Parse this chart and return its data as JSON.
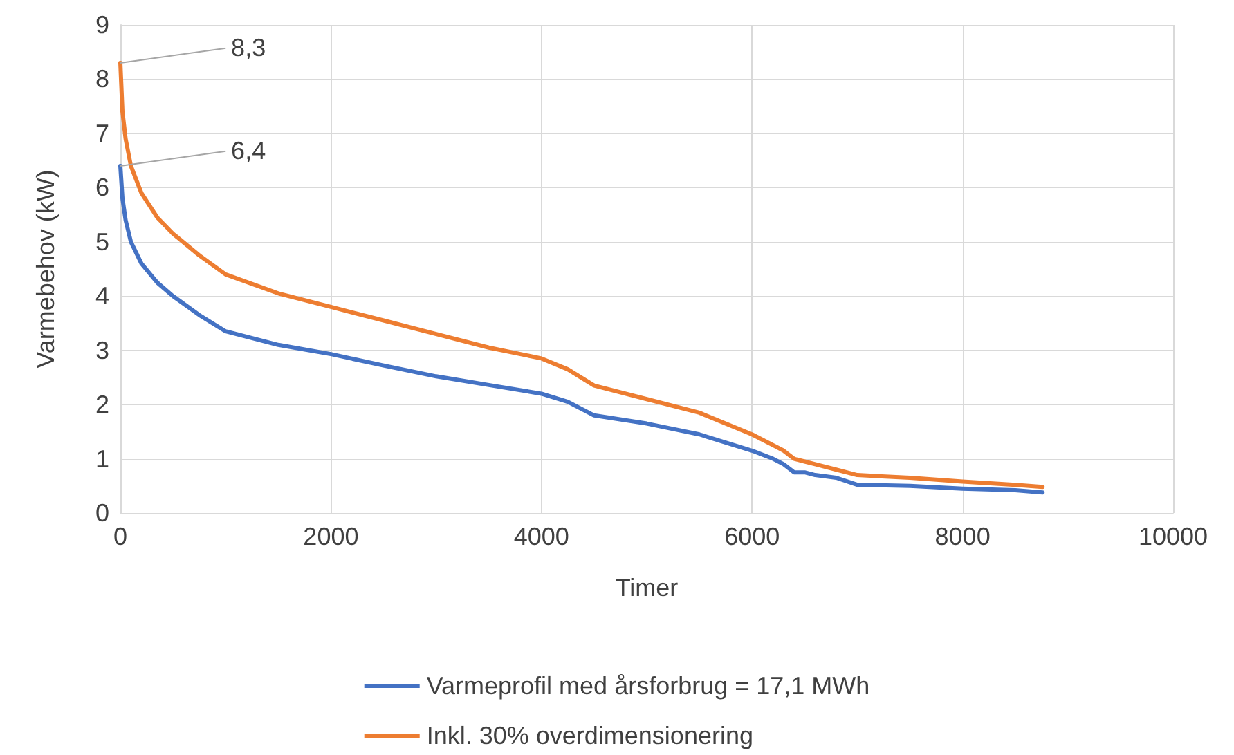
{
  "chart_data": {
    "type": "line",
    "xlabel": "Timer",
    "ylabel": "Varmebehov (kW)",
    "xlim": [
      0,
      10000
    ],
    "xticks": [
      0,
      2000,
      4000,
      6000,
      8000,
      10000
    ],
    "ylim": [
      0,
      9
    ],
    "yticks": [
      0,
      1,
      2,
      3,
      4,
      5,
      6,
      7,
      8,
      9
    ],
    "grid": true,
    "legend": "bottom",
    "marker": "none",
    "line_style": "solid",
    "annotations": [
      {
        "text": "8,3",
        "x": 0,
        "y": 8.3
      },
      {
        "text": "6,4",
        "x": 0,
        "y": 6.4
      }
    ],
    "series": [
      {
        "name": "Varmeprofil med årsforbrug = 17,1 MWh",
        "color": "#4472c4",
        "x": [
          0,
          20,
          50,
          100,
          200,
          350,
          500,
          750,
          1000,
          1500,
          2000,
          2500,
          3000,
          3500,
          4000,
          4250,
          4500,
          5000,
          5500,
          6000,
          6200,
          6300,
          6400,
          6500,
          6600,
          6800,
          7000,
          7500,
          8000,
          8500,
          8760
        ],
        "values": [
          6.4,
          5.8,
          5.4,
          5.0,
          4.6,
          4.25,
          4.0,
          3.65,
          3.35,
          3.1,
          2.93,
          2.72,
          2.52,
          2.36,
          2.2,
          2.05,
          1.8,
          1.65,
          1.45,
          1.15,
          1.0,
          0.9,
          0.75,
          0.75,
          0.7,
          0.65,
          0.52,
          0.5,
          0.45,
          0.42,
          0.38
        ]
      },
      {
        "name": "Inkl. 30% overdimensionering",
        "color": "#ed7d31",
        "x": [
          0,
          20,
          50,
          100,
          200,
          350,
          500,
          750,
          1000,
          1500,
          2000,
          2500,
          3000,
          3500,
          4000,
          4250,
          4500,
          5000,
          5500,
          6000,
          6200,
          6300,
          6400,
          6500,
          6600,
          6800,
          7000,
          7500,
          8000,
          8500,
          8760
        ],
        "values": [
          8.3,
          7.4,
          6.9,
          6.4,
          5.9,
          5.45,
          5.15,
          4.75,
          4.4,
          4.05,
          3.8,
          3.55,
          3.3,
          3.05,
          2.85,
          2.65,
          2.35,
          2.1,
          1.85,
          1.45,
          1.25,
          1.15,
          1.0,
          0.95,
          0.9,
          0.8,
          0.7,
          0.65,
          0.58,
          0.52,
          0.48
        ]
      }
    ]
  }
}
